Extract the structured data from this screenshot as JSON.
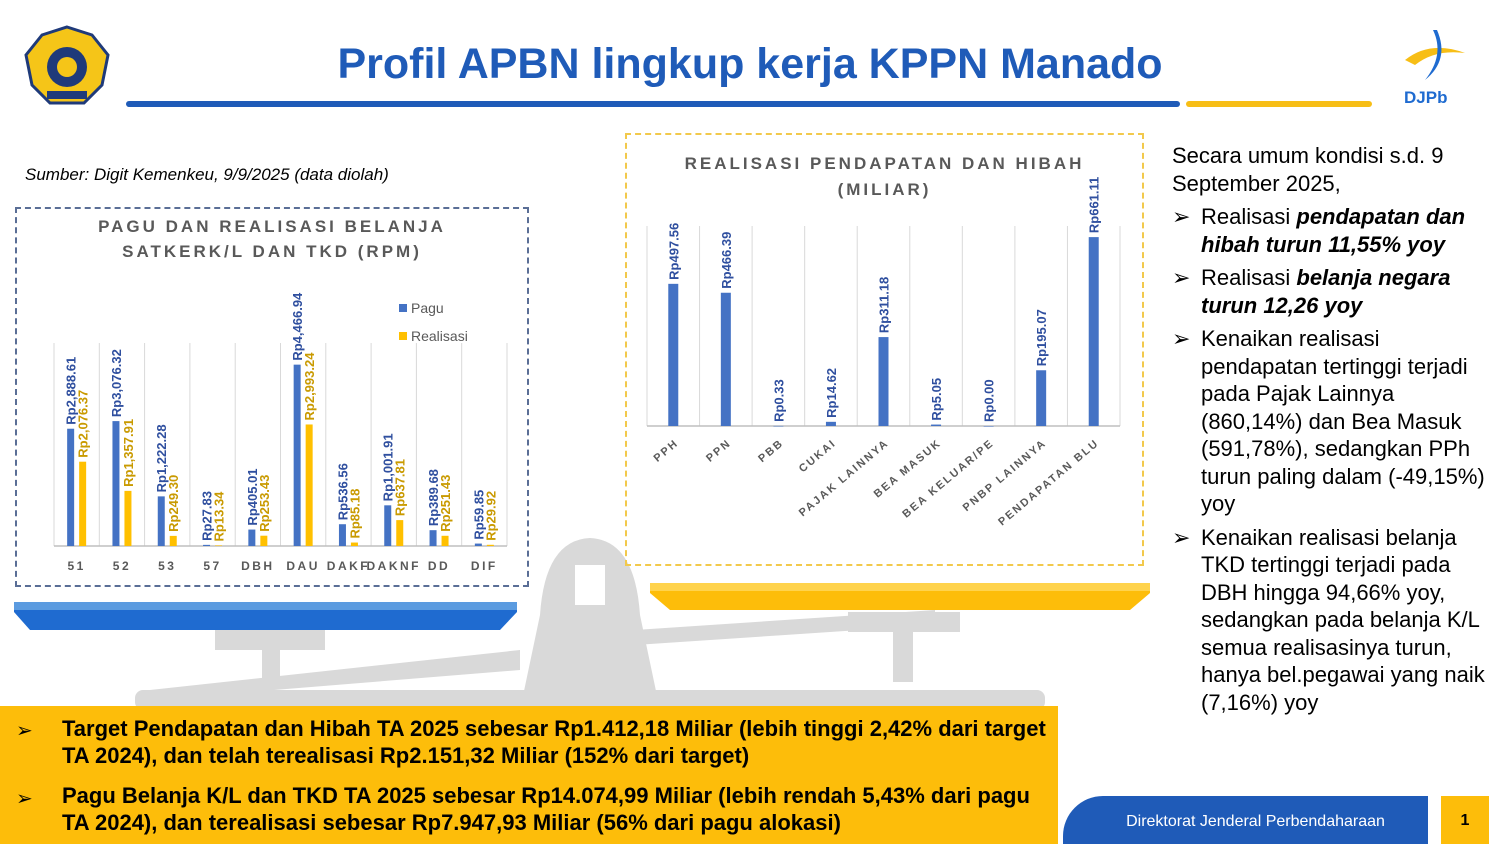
{
  "header": {
    "title": "Profil APBN lingkup kerja KPPN Manado",
    "logo_right_text": "DJPb"
  },
  "source": "Sumber: Digit Kemenkeu, 9/9/2025 (data diolah)",
  "chart_data": [
    {
      "type": "bar",
      "title": "PAGU DAN REALISASI BELANJA SATKERK/L DAN TKD (RPM)",
      "title_lines": [
        "PAGU DAN REALISASI BELANJA",
        "SATKERK/L DAN TKD (RPM)"
      ],
      "categories": [
        "51",
        "52",
        "53",
        "57",
        "DBH",
        "DAU",
        "DAKF",
        "DAKNF",
        "DD",
        "DIF"
      ],
      "series": [
        {
          "name": "Pagu",
          "color": "#4472C4",
          "label_color": "#2F4F9F",
          "values": [
            2888.61,
            3076.32,
            1222.28,
            27.83,
            405.01,
            4466.94,
            536.56,
            1001.91,
            389.68,
            59.85
          ],
          "labels": [
            "Rp2,888.61",
            "Rp3,076.32",
            "Rp1,222.28",
            "Rp27.83",
            "Rp405.01",
            "Rp4,466.94",
            "Rp536.56",
            "Rp1,001.91",
            "Rp389.68",
            "Rp59.85"
          ]
        },
        {
          "name": "Realisasi",
          "color": "#FFC000",
          "label_color": "#C99A00",
          "values": [
            2076.37,
            1357.91,
            249.3,
            13.34,
            253.43,
            2993.24,
            85.18,
            637.81,
            251.43,
            29.92
          ],
          "labels": [
            "Rp2,076.37",
            "Rp1,357.91",
            "Rp249.30",
            "Rp13.34",
            "Rp253.43",
            "Rp2,993.24",
            "Rp85.18",
            "Rp637.81",
            "Rp251.43",
            "Rp29.92"
          ]
        }
      ],
      "ylim": [
        0,
        5000
      ],
      "legend": "top-right",
      "grid": "vertical"
    },
    {
      "type": "bar",
      "title": "REALISASI PENDAPATAN DAN HIBAH (MILIAR)",
      "title_lines": [
        "REALISASI PENDAPATAN DAN HIBAH",
        "(MILIAR)"
      ],
      "categories": [
        "PPH",
        "PPN",
        "PBB",
        "CUKAI",
        "PAJAK LAINNYA",
        "BEA MASUK",
        "BEA KELUAR/PE",
        "PNBP LAINNYA",
        "PENDAPATAN BLU"
      ],
      "series": [
        {
          "name": "Realisasi",
          "color": "#4472C4",
          "label_color": "#2F4F9F",
          "values": [
            497.56,
            466.39,
            0.33,
            14.62,
            311.18,
            5.05,
            0.0,
            195.07,
            661.11
          ],
          "labels": [
            "Rp497.56",
            "Rp466.39",
            "Rp0.33",
            "Rp14.62",
            "Rp311.18",
            "Rp5.05",
            "Rp0.00",
            "Rp195.07",
            "Rp661.11"
          ]
        }
      ],
      "ylim": [
        0,
        700
      ],
      "grid": "vertical"
    }
  ],
  "summary": {
    "intro": "Secara umum kondisi s.d. 9 September 2025,",
    "bullets": [
      {
        "pre": "Realisasi ",
        "em": "pendapatan dan hibah turun 11,55% yoy",
        "post": ""
      },
      {
        "pre": "Realisasi ",
        "em": "belanja negara turun 12,26 yoy",
        "post": ""
      },
      {
        "pre": "Kenaikan realisasi pendapatan tertinggi terjadi pada Pajak Lainnya (860,14%) dan Bea Masuk (591,78%), sedangkan PPh turun paling dalam (-49,15%) yoy",
        "em": "",
        "post": ""
      },
      {
        "pre": "Kenaikan realisasi belanja TKD tertinggi terjadi pada DBH hingga 94,66% yoy, sedangkan pada belanja K/L semua realisasinya turun, hanya bel.pegawai yang naik (7,16%) yoy",
        "em": "",
        "post": ""
      }
    ]
  },
  "bottom": {
    "bullets": [
      "Target Pendapatan dan Hibah TA 2025 sebesar Rp1.412,18 Miliar (lebih tinggi 2,42% dari target TA 2024), dan telah terealisasi Rp2.151,32 Miliar (152% dari target)",
      "Pagu Belanja K/L dan TKD TA 2025 sebesar Rp14.074,99 Miliar (lebih rendah 5,43% dari pagu TA 2024), dan terealisasi sebesar Rp7.947,93 Miliar (56% dari pagu alokasi)"
    ]
  },
  "footer": {
    "org": "Direktorat Jenderal Perbendaharaan",
    "page": "1"
  },
  "arrow": "➢"
}
